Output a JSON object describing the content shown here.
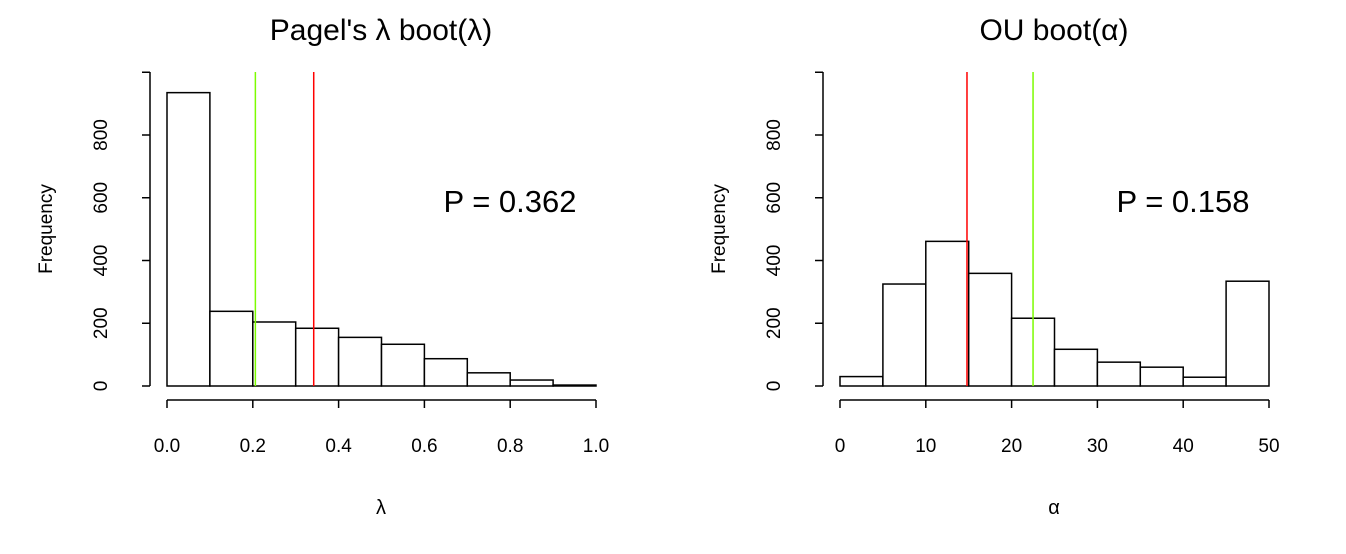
{
  "chart_data": [
    {
      "type": "bar",
      "subtype": "histogram",
      "title": "Pagel's λ boot(λ)",
      "xlabel": "λ",
      "ylabel": "Frequency",
      "bin_edges": [
        0.0,
        0.1,
        0.2,
        0.3,
        0.4,
        0.5,
        0.6,
        0.7,
        0.8,
        0.9,
        1.0
      ],
      "values": [
        935,
        238,
        204,
        184,
        155,
        133,
        87,
        42,
        19,
        3
      ],
      "xlim": [
        0,
        1
      ],
      "ylim": [
        0,
        1000
      ],
      "xticks": [
        "0.0",
        "0.2",
        "0.4",
        "0.6",
        "0.8",
        "1.0"
      ],
      "yticks": [
        "0",
        "200",
        "400",
        "600",
        "800"
      ],
      "vlines": [
        {
          "x": 0.206,
          "color": "#7CFC00"
        },
        {
          "x": 0.342,
          "color": "#FF0000"
        }
      ],
      "annotation": "P = 0.362",
      "grid": false
    },
    {
      "type": "bar",
      "subtype": "histogram",
      "title": "OU boot(α)",
      "xlabel": "α",
      "ylabel": "Frequency",
      "bin_edges": [
        0,
        5,
        10,
        15,
        20,
        25,
        30,
        35,
        40,
        45,
        50
      ],
      "values": [
        30,
        325,
        461,
        359,
        216,
        117,
        76,
        60,
        28,
        334
      ],
      "xlim": [
        0,
        50
      ],
      "ylim": [
        0,
        1000
      ],
      "xticks": [
        "0",
        "10",
        "20",
        "30",
        "40",
        "50"
      ],
      "yticks": [
        "0",
        "200",
        "400",
        "600",
        "800"
      ],
      "vlines": [
        {
          "x": 14.8,
          "color": "#FF0000"
        },
        {
          "x": 22.5,
          "color": "#7CFC00"
        }
      ],
      "annotation": "P = 0.158",
      "grid": false
    }
  ]
}
